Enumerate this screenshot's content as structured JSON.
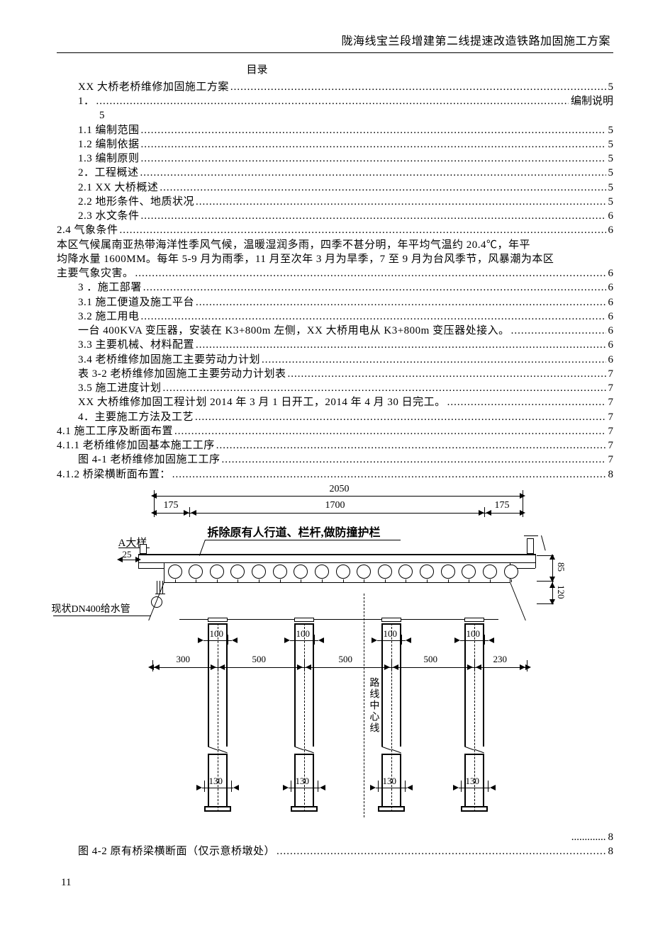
{
  "header": {
    "title": "陇海线宝兰段增建第二线提速改造铁路加固施工方案"
  },
  "toc": {
    "title": "目录",
    "lines": [
      {
        "indent": 1,
        "label": "XX 大桥老桥维修加固施工方案",
        "page": "5",
        "dots": true
      },
      {
        "indent": 1,
        "label": "1．",
        "page": "编制说明",
        "dots": true
      },
      {
        "indent": 2,
        "label": "5",
        "page": "",
        "plain": true
      },
      {
        "indent": 1,
        "label": "1.1 编制范围 ",
        "page": "5",
        "dots": true
      },
      {
        "indent": 1,
        "label": "1.2 编制依据 ",
        "page": "5",
        "dots": true
      },
      {
        "indent": 1,
        "label": "1.3 编制原则 ",
        "page": "5",
        "dots": true
      },
      {
        "indent": 1,
        "label": "2．工程概述 ",
        "page": "5",
        "dots": true
      },
      {
        "indent": 1,
        "label": "2.1 XX 大桥概述",
        "page": "5",
        "dots": true
      },
      {
        "indent": 1,
        "label": "2.2 地形条件、地质状况",
        "page": "5",
        "dots": true
      },
      {
        "indent": 1,
        "label": "2.3 水文条件 ",
        "page": "6",
        "dots": true
      },
      {
        "indent": 0,
        "label": "2.4 气象条件 ",
        "page": "6",
        "dots": true
      },
      {
        "indent": 0,
        "label": "本区气候属南亚热带海洋性季风气候，温暖湿润多雨，四季不甚分明，年平均气温约 20.4℃，年平",
        "page": "",
        "plain": true
      },
      {
        "indent": 0,
        "label": "均降水量 1600MM。每年 5-9 月为雨季，11 月至次年 3 月为旱季，7 至 9 月为台风季节，风暴潮为本区",
        "page": "",
        "plain": true
      },
      {
        "indent": 0,
        "label": "主要气象灾害。 ",
        "page": "6",
        "dots": true
      },
      {
        "indent": 1,
        "label": "3 ．施工部署 ",
        "page": "6",
        "dots": true
      },
      {
        "indent": 1,
        "label": "3.1 施工便道及施工平台",
        "page": "6",
        "dots": true
      },
      {
        "indent": 1,
        "label": "3.2 施工用电 ",
        "page": "6",
        "dots": true
      },
      {
        "indent": 1,
        "label": "一台 400KVA 变压器，安装在 K3+800m 左侧，XX 大桥用电从 K3+800m 变压器处接入。 ",
        "page": "6",
        "dots": true
      },
      {
        "indent": 1,
        "label": "3.3 主要机械、材料配置 ",
        "page": "6",
        "dots": true
      },
      {
        "indent": 1,
        "label": "3.4 老桥维修加固施工主要劳动力计划 ",
        "page": "6",
        "dots": true
      },
      {
        "indent": 1,
        "label": "表 3-2 老桥维修加固施工主要劳动力计划表",
        "page": "7",
        "dots": true
      },
      {
        "indent": 1,
        "label": "3.5 施工进度计划 ",
        "page": "7",
        "dots": true
      },
      {
        "indent": 1,
        "label": "XX 大桥维修加固工程计划 2014 年 3 月 1 日开工，2014 年 4 月 30 日完工。 ",
        "page": "7",
        "dots": true
      },
      {
        "indent": 1,
        "label": "4．主要施工方法及工艺 ",
        "page": "7",
        "dots": true
      },
      {
        "indent": 0,
        "label": "4.1 施工工序及断面布置 ",
        "page": "7",
        "dots": true
      },
      {
        "indent": 0,
        "label": "4.1.1 老桥维修加固基本施工工序 ",
        "page": "7",
        "dots": true
      },
      {
        "indent": 1,
        "label": "图 4-1 老桥维修加固施工工序",
        "page": "7",
        "dots": true
      },
      {
        "indent": 0,
        "label": "4.1.2  桥梁横断面布置：",
        "page": "8",
        "dots": true
      }
    ],
    "post_lines": [
      {
        "indent": 1,
        "label": "",
        "page": "8",
        "dots": true,
        "rightdots": true
      },
      {
        "indent": 1,
        "label": "图 4-2 原有桥梁横断面（仅示意桥墩处）",
        "page": "8",
        "dots": true
      }
    ]
  },
  "diagram": {
    "top_total": "2050",
    "top_left": "175",
    "top_mid": "1700",
    "top_right": "175",
    "note_main": "拆除原有人行道、栏杆,做防撞护栏",
    "label_a": "A大样",
    "label_a_sub": "25",
    "label_left": "现状DN400给水管",
    "right_v1": "85",
    "right_v2": "120",
    "center_v_label": "路线中心线",
    "col_tops": [
      "100",
      "100",
      "100",
      "100"
    ],
    "col_bases": [
      "130",
      "130",
      "130",
      "130"
    ],
    "spans": [
      "300",
      "500",
      "500",
      "500",
      "230"
    ],
    "circle_count": 17,
    "colors": {
      "line": "#000000",
      "bg": "#ffffff"
    }
  },
  "footer": {
    "page_number": "11"
  }
}
